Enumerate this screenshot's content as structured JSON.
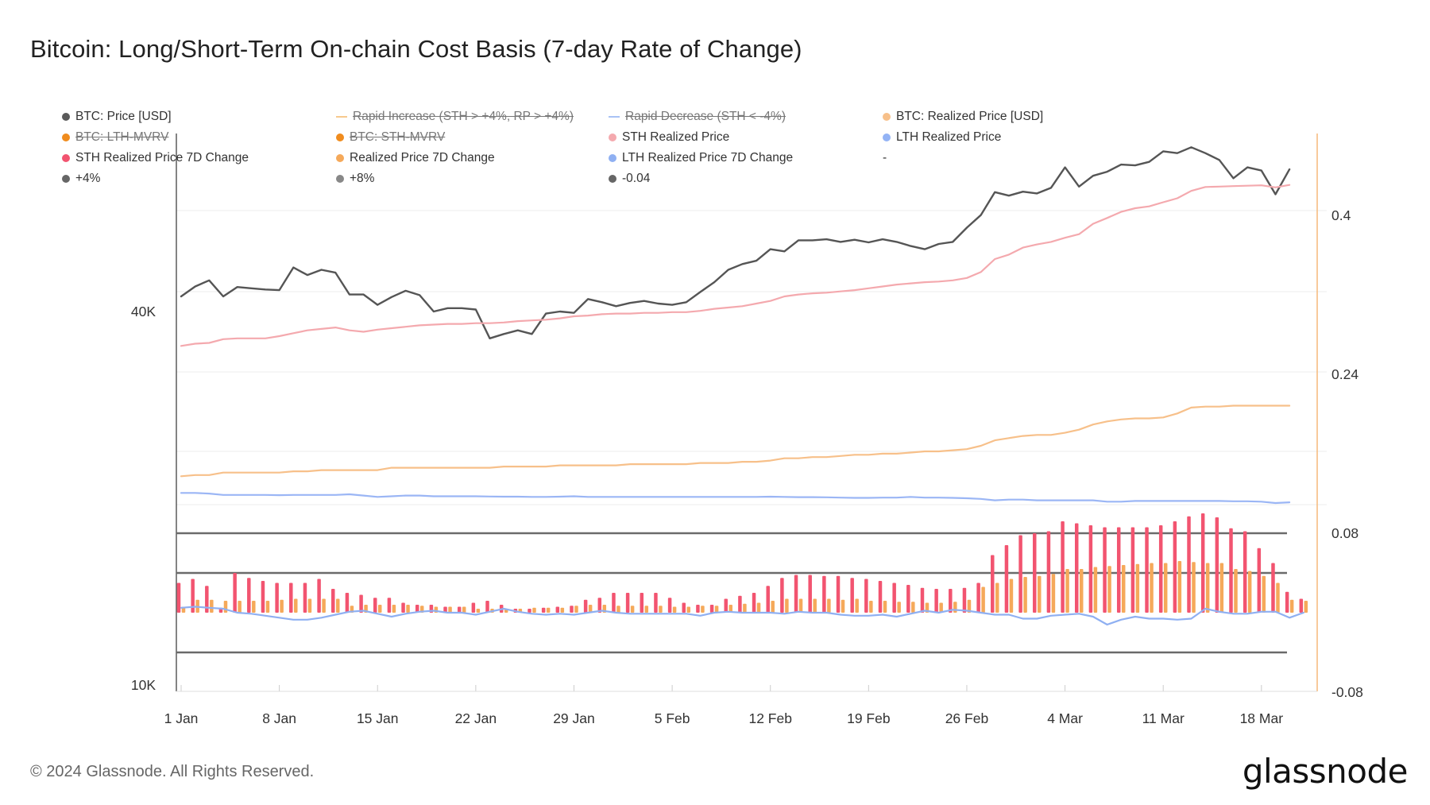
{
  "title": "Bitcoin: Long/Short-Term On-chain Cost Basis (7-day Rate of Change)",
  "footer": "© 2024 Glassnode. All Rights Reserved.",
  "brand": "glassnode",
  "legend": [
    {
      "label": "BTC: Price [USD]",
      "color": "#5a5a5a",
      "style": "dot",
      "enabled": true
    },
    {
      "label": "Rapid Increase (STH > +4%, RP > +4%)",
      "color": "#f7c98e",
      "style": "line",
      "enabled": false
    },
    {
      "label": "Rapid Decrease (STH < -4%)",
      "color": "#a9c2f5",
      "style": "line",
      "enabled": false
    },
    {
      "label": "BTC: Realized Price [USD]",
      "color": "#f7c08a",
      "style": "dot",
      "enabled": true
    },
    {
      "label": "BTC: LTH-MVRV",
      "color": "#f08c1e",
      "style": "dot",
      "enabled": false
    },
    {
      "label": "BTC: STH-MVRV",
      "color": "#f08c1e",
      "style": "dot",
      "enabled": false
    },
    {
      "label": "STH Realized Price",
      "color": "#f4a9ae",
      "style": "dot",
      "enabled": true
    },
    {
      "label": "LTH Realized Price",
      "color": "#93b3f5",
      "style": "dot",
      "enabled": true
    },
    {
      "label": "STH Realized Price 7D Change",
      "color": "#f25470",
      "style": "dot",
      "enabled": true
    },
    {
      "label": "Realized Price 7D Change",
      "color": "#f5a95a",
      "style": "dot",
      "enabled": true
    },
    {
      "label": "LTH Realized Price 7D Change",
      "color": "#8fb0f2",
      "style": "dot",
      "enabled": true
    },
    {
      "label": "-",
      "color": "",
      "style": "none",
      "enabled": true
    },
    {
      "label": "+4%",
      "color": "#666666",
      "style": "dot",
      "enabled": true
    },
    {
      "label": "+8%",
      "color": "#888888",
      "style": "dot",
      "enabled": true
    },
    {
      "label": "-0.04",
      "color": "#666666",
      "style": "dot",
      "enabled": true
    }
  ],
  "chart_data": {
    "type": "line",
    "x_tick_labels": [
      "1 Jan",
      "8 Jan",
      "15 Jan",
      "22 Jan",
      "29 Jan",
      "5 Feb",
      "12 Feb",
      "19 Feb",
      "26 Feb",
      "4 Mar",
      "11 Mar",
      "18 Mar"
    ],
    "y_left": {
      "scale": "log",
      "tick_labels": [
        "10K",
        "40K"
      ],
      "ticks": [
        10000,
        40000
      ],
      "range": [
        10000,
        75000
      ]
    },
    "y_right": {
      "scale": "linear",
      "tick_labels": [
        "-0.08",
        "0.08",
        "0.24",
        "0.4"
      ],
      "ticks": [
        -0.08,
        0.08,
        0.24,
        0.4
      ],
      "range": [
        -0.08,
        0.4864
      ]
    },
    "reference_lines_right": [
      0.08,
      0.04,
      -0.04
    ],
    "series": [
      {
        "name": "BTC: Price [USD]",
        "axis": "left",
        "kind": "line",
        "color": "#555555",
        "values": [
          42300,
          43900,
          44900,
          42300,
          43800,
          43600,
          43400,
          43300,
          47100,
          45800,
          46700,
          46200,
          42600,
          42600,
          41000,
          42200,
          43200,
          42500,
          40000,
          40500,
          40500,
          40300,
          36200,
          36800,
          37300,
          36800,
          39700,
          40000,
          39800,
          41900,
          41400,
          40800,
          41300,
          41600,
          41200,
          41000,
          41400,
          43000,
          44600,
          46700,
          47700,
          48300,
          50400,
          50000,
          52100,
          52100,
          52300,
          51800,
          52200,
          51700,
          52300,
          51800,
          51000,
          50400,
          51400,
          51800,
          54600,
          57200,
          62300,
          61500,
          62400,
          62000,
          63300,
          68300,
          63600,
          66200,
          67200,
          69000,
          68800,
          69700,
          72500,
          72000,
          73600,
          72000,
          70200,
          65600,
          68300,
          67500,
          61800,
          67800
        ]
      },
      {
        "name": "STH Realized Price",
        "axis": "left",
        "kind": "line",
        "color": "#f4a9ae",
        "values": [
          35200,
          35500,
          35600,
          36100,
          36200,
          36200,
          36200,
          36500,
          36900,
          37300,
          37500,
          37700,
          37300,
          37100,
          37400,
          37600,
          37800,
          38000,
          38100,
          38200,
          38200,
          38300,
          38300,
          38400,
          38600,
          38700,
          38800,
          39000,
          39300,
          39400,
          39600,
          39700,
          39700,
          39800,
          39800,
          39900,
          39900,
          40100,
          40400,
          40600,
          40800,
          41200,
          41600,
          42300,
          42600,
          42800,
          42900,
          43100,
          43300,
          43600,
          43900,
          44200,
          44400,
          44600,
          44700,
          44900,
          45300,
          46300,
          48600,
          49400,
          50700,
          51300,
          51800,
          52600,
          53300,
          55400,
          56600,
          57900,
          58700,
          59100,
          60000,
          60900,
          62600,
          63500,
          63600,
          63700,
          63800,
          63900,
          63400,
          64000
        ]
      },
      {
        "name": "BTC: Realized Price [USD]",
        "axis": "left",
        "kind": "line",
        "color": "#f7c08a",
        "values": [
          21700,
          21800,
          21800,
          22000,
          22000,
          22000,
          22000,
          22000,
          22100,
          22100,
          22200,
          22200,
          22200,
          22200,
          22200,
          22400,
          22400,
          22400,
          22400,
          22400,
          22400,
          22400,
          22400,
          22500,
          22500,
          22500,
          22500,
          22600,
          22600,
          22600,
          22600,
          22600,
          22700,
          22700,
          22700,
          22700,
          22700,
          22800,
          22800,
          22800,
          22900,
          22900,
          23000,
          23200,
          23200,
          23300,
          23300,
          23400,
          23500,
          23500,
          23600,
          23600,
          23700,
          23800,
          23800,
          23900,
          24000,
          24300,
          24800,
          25000,
          25200,
          25300,
          25300,
          25500,
          25800,
          26300,
          26600,
          26800,
          26900,
          26900,
          27000,
          27400,
          28000,
          28100,
          28100,
          28200,
          28200,
          28200,
          28200,
          28200
        ]
      },
      {
        "name": "LTH Realized Price",
        "axis": "left",
        "kind": "line",
        "color": "#9bb6f5",
        "values": [
          20400,
          20400,
          20350,
          20250,
          20250,
          20250,
          20250,
          20230,
          20250,
          20250,
          20250,
          20250,
          20300,
          20200,
          20100,
          20150,
          20200,
          20200,
          20150,
          20150,
          20150,
          20150,
          20130,
          20120,
          20120,
          20100,
          20100,
          20120,
          20150,
          20100,
          20100,
          20100,
          20100,
          20100,
          20100,
          20100,
          20100,
          20100,
          20100,
          20100,
          20100,
          20100,
          20120,
          20100,
          20080,
          20080,
          20070,
          20050,
          20030,
          20030,
          20050,
          20050,
          20100,
          20050,
          20050,
          20030,
          20000,
          19950,
          19850,
          19900,
          19900,
          19850,
          19850,
          19850,
          19850,
          19850,
          19750,
          19750,
          19800,
          19800,
          19800,
          19800,
          19800,
          19800,
          19800,
          19780,
          19780,
          19750,
          19650,
          19700
        ]
      },
      {
        "name": "STH Realized Price 7D Change",
        "axis": "right",
        "kind": "bar",
        "color": "#f25470",
        "values": [
          0.03,
          0.034,
          0.027,
          0.005,
          0.04,
          0.035,
          0.032,
          0.03,
          0.03,
          0.03,
          0.034,
          0.024,
          0.02,
          0.018,
          0.015,
          0.015,
          0.01,
          0.008,
          0.008,
          0.006,
          0.006,
          0.01,
          0.012,
          0.008,
          0.004,
          0.004,
          0.005,
          0.006,
          0.007,
          0.013,
          0.015,
          0.02,
          0.02,
          0.02,
          0.02,
          0.015,
          0.01,
          0.008,
          0.008,
          0.014,
          0.017,
          0.02,
          0.027,
          0.035,
          0.038,
          0.038,
          0.037,
          0.037,
          0.035,
          0.034,
          0.032,
          0.03,
          0.028,
          0.025,
          0.024,
          0.024,
          0.025,
          0.03,
          0.058,
          0.068,
          0.078,
          0.08,
          0.082,
          0.092,
          0.09,
          0.088,
          0.086,
          0.086,
          0.086,
          0.086,
          0.088,
          0.092,
          0.097,
          0.1,
          0.096,
          0.085,
          0.082,
          0.065,
          0.05,
          0.021,
          0.014
        ]
      },
      {
        "name": "Realized Price 7D Change",
        "axis": "right",
        "kind": "bar",
        "color": "#f5a95a",
        "values": [
          0.006,
          0.013,
          0.013,
          0.012,
          0.012,
          0.012,
          0.012,
          0.013,
          0.014,
          0.014,
          0.014,
          0.014,
          0.007,
          0.008,
          0.008,
          0.008,
          0.008,
          0.007,
          0.006,
          0.006,
          0.006,
          0.004,
          0.004,
          0.004,
          0.004,
          0.005,
          0.005,
          0.005,
          0.007,
          0.008,
          0.008,
          0.007,
          0.007,
          0.007,
          0.007,
          0.006,
          0.006,
          0.007,
          0.007,
          0.008,
          0.009,
          0.01,
          0.012,
          0.014,
          0.014,
          0.014,
          0.014,
          0.013,
          0.014,
          0.012,
          0.012,
          0.011,
          0.011,
          0.01,
          0.01,
          0.011,
          0.013,
          0.026,
          0.03,
          0.034,
          0.036,
          0.037,
          0.039,
          0.044,
          0.044,
          0.046,
          0.047,
          0.048,
          0.049,
          0.05,
          0.05,
          0.052,
          0.051,
          0.05,
          0.05,
          0.044,
          0.042,
          0.037,
          0.03,
          0.013,
          0.012
        ]
      },
      {
        "name": "LTH Realized Price 7D Change",
        "axis": "right",
        "kind": "line",
        "color": "#8fb0f2",
        "values": [
          0.005,
          0.006,
          0.005,
          0.004,
          0.0,
          -0.001,
          -0.003,
          -0.005,
          -0.007,
          -0.007,
          -0.005,
          -0.002,
          0.001,
          0.002,
          -0.001,
          -0.004,
          -0.001,
          0.001,
          0.002,
          0.0,
          0.0,
          -0.002,
          0.001,
          0.004,
          0.001,
          -0.001,
          -0.002,
          -0.001,
          -0.002,
          0.0,
          0.002,
          0.0,
          -0.001,
          -0.001,
          -0.001,
          -0.001,
          -0.001,
          -0.003,
          0.0,
          0.001,
          0.0,
          0.0,
          0.0,
          -0.001,
          0.001,
          0.0,
          0.0,
          -0.002,
          -0.003,
          -0.003,
          -0.002,
          -0.004,
          -0.001,
          0.002,
          0.0,
          0.003,
          0.002,
          0.0,
          -0.002,
          -0.002,
          -0.006,
          -0.006,
          -0.003,
          -0.002,
          -0.001,
          -0.004,
          -0.012,
          -0.007,
          -0.004,
          -0.006,
          -0.006,
          -0.007,
          -0.006,
          0.004,
          0.001,
          -0.001,
          -0.001,
          0.001,
          0.001,
          -0.005,
          0.0
        ]
      }
    ]
  }
}
